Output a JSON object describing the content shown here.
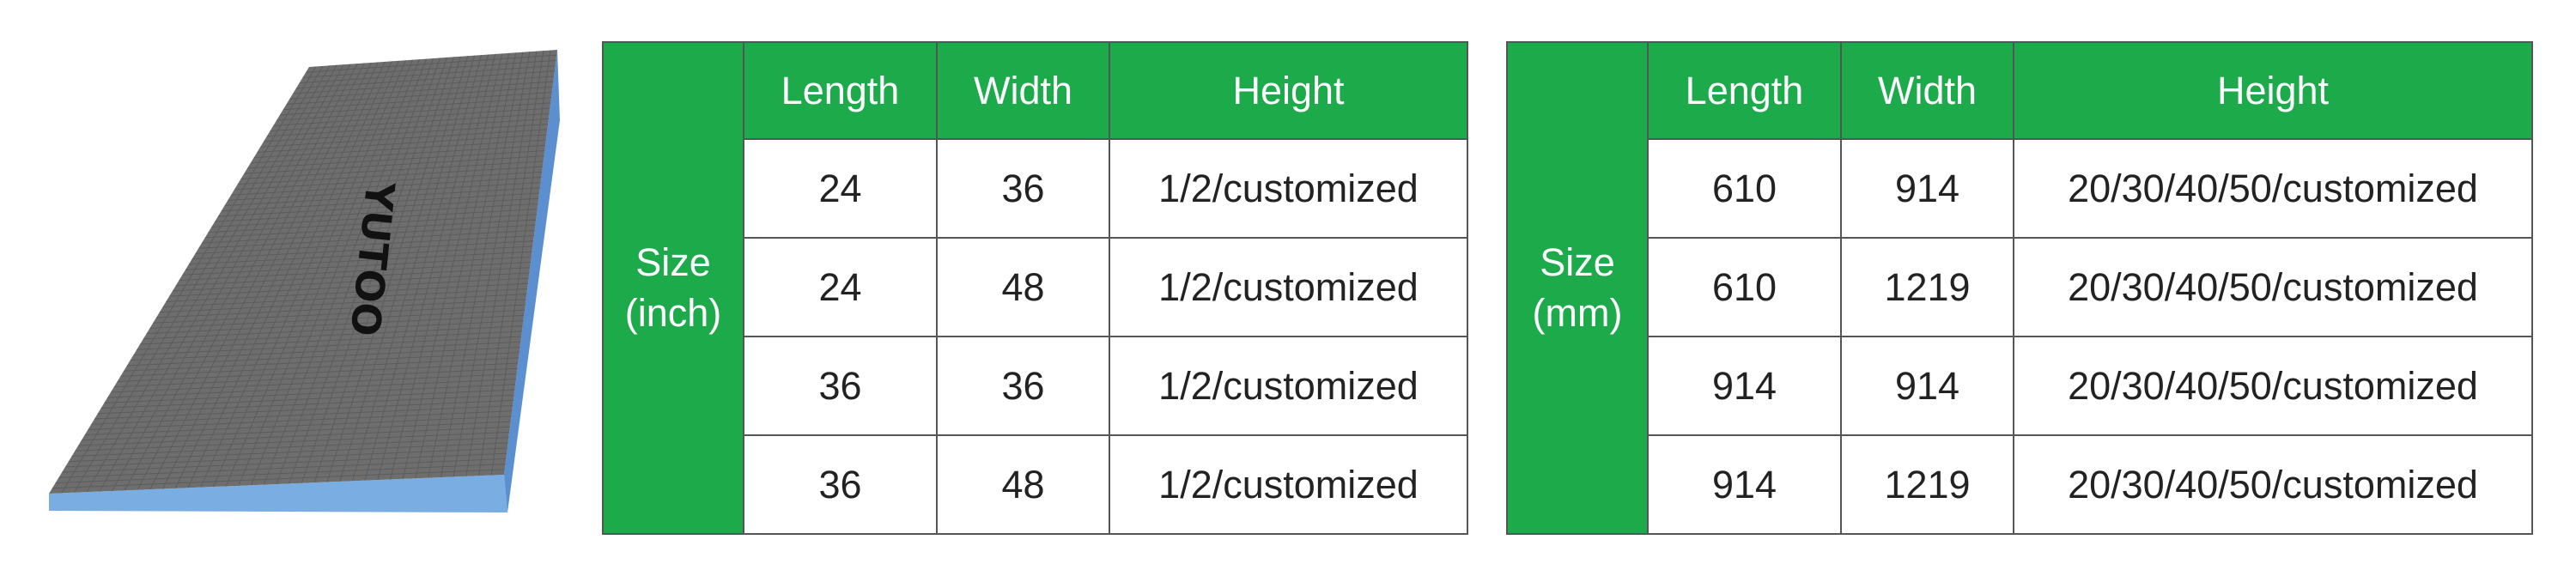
{
  "product_image": {
    "brand_logo": "YUTOO",
    "colors": {
      "top": "#6e6e6e",
      "grid": "#5a5a5a",
      "edge_front": "#7aade2",
      "edge_side": "#5b8fcf"
    }
  },
  "tables": [
    {
      "size_label": "Size",
      "unit_label": "(inch)",
      "headers": [
        "Length",
        "Width",
        "Height"
      ],
      "rows": [
        [
          "24",
          "36",
          "1/2/customized"
        ],
        [
          "24",
          "48",
          "1/2/customized"
        ],
        [
          "36",
          "36",
          "1/2/customized"
        ],
        [
          "36",
          "48",
          "1/2/customized"
        ]
      ]
    },
    {
      "size_label": "Size",
      "unit_label": "(mm)",
      "headers": [
        "Length",
        "Width",
        "Height"
      ],
      "rows": [
        [
          "610",
          "914",
          "20/30/40/50/customized"
        ],
        [
          "610",
          "1219",
          "20/30/40/50/customized"
        ],
        [
          "914",
          "914",
          "20/30/40/50/customized"
        ],
        [
          "914",
          "1219",
          "20/30/40/50/customized"
        ]
      ]
    }
  ],
  "accent_color": "#1daa4a"
}
